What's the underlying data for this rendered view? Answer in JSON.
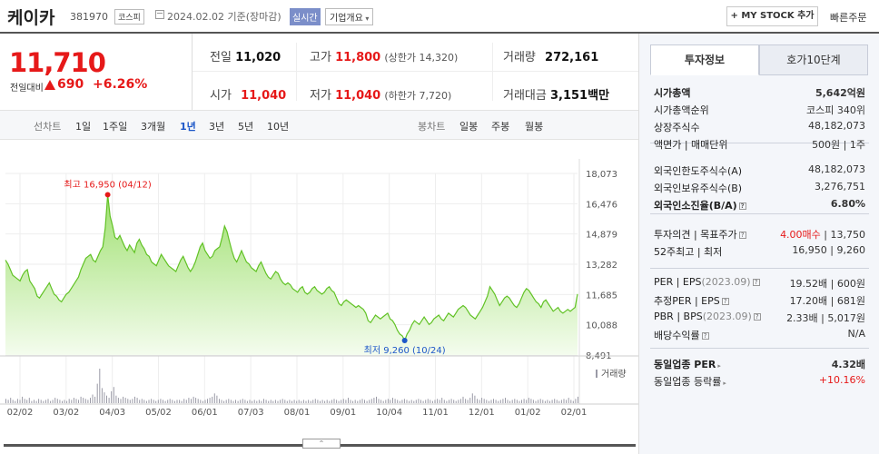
{
  "header": {
    "name": "케이카",
    "code": "381970",
    "market": "코스피",
    "date": "2024.02.02 기준(장마감)",
    "realtime": "실시간",
    "company": "기업개요",
    "mystock": "+ MY STOCK 추가",
    "quick": "빠른주문"
  },
  "price": {
    "current": "11,710",
    "diff_label": "전일대비",
    "change": "690",
    "pct": "+6.26%"
  },
  "summary": {
    "prev_label": "전일",
    "prev": "11,020",
    "high_label": "고가",
    "high": "11,800",
    "high_limit": "(상한가 14,320)",
    "volume_label": "거래량",
    "volume": "272,161",
    "open_label": "시가",
    "open": "11,040",
    "low_label": "저가",
    "low": "11,040",
    "low_limit": "(하한가 7,720)",
    "amount_label": "거래대금",
    "amount": "3,151",
    "amount_unit": "백만"
  },
  "tabs": {
    "line_label": "선차트",
    "periods": [
      "1일",
      "1주일",
      "3개월",
      "1년",
      "3년",
      "5년",
      "10년"
    ],
    "active_period": "1년",
    "candle_label": "봉차트",
    "candles": [
      "일봉",
      "주봉",
      "월봉"
    ]
  },
  "chart_data": {
    "type": "area",
    "x_ticks": [
      "02/02",
      "03/02",
      "04/03",
      "05/02",
      "06/01",
      "07/03",
      "08/01",
      "09/01",
      "10/04",
      "11/01",
      "12/01",
      "01/02",
      "02/01"
    ],
    "y_ticks": [
      "18,073",
      "16,476",
      "14,879",
      "13,282",
      "11,685",
      "10,088",
      "8,491"
    ],
    "ylim": [
      8491,
      18073
    ],
    "series": [
      {
        "values": [
          13500,
          13300,
          13000,
          12700,
          12600,
          12500,
          12400,
          12700,
          12900,
          13000,
          12400,
          12200,
          12000,
          11600,
          11500,
          11700,
          11900,
          12100,
          12300,
          12000,
          11700,
          11600,
          11400,
          11300,
          11500,
          11700,
          11800,
          12000,
          12200,
          12400,
          12600,
          13000,
          13300,
          13600,
          13700,
          13800,
          13500,
          13400,
          13700,
          14000,
          14200,
          15200,
          16950,
          15800,
          15300,
          14700,
          14600,
          14800,
          14500,
          14200,
          14000,
          14300,
          14100,
          13900,
          14400,
          14600,
          14300,
          14100,
          13800,
          13700,
          13400,
          13300,
          13200,
          13500,
          13800,
          13600,
          13400,
          13200,
          13100,
          13000,
          12900,
          13200,
          13500,
          13700,
          13400,
          13100,
          12900,
          13100,
          13400,
          13800,
          14200,
          14400,
          14000,
          13800,
          13600,
          13700,
          14000,
          14100,
          14200,
          14700,
          15300,
          15000,
          14500,
          14000,
          13600,
          13400,
          13700,
          14000,
          13700,
          13400,
          13300,
          13100,
          13000,
          12900,
          13200,
          13400,
          13100,
          12800,
          12600,
          12500,
          12700,
          12900,
          12800,
          12500,
          12300,
          12200,
          12300,
          12200,
          12000,
          11900,
          11800,
          12000,
          12100,
          11800,
          11700,
          11800,
          12000,
          12100,
          11900,
          11800,
          11700,
          11800,
          12000,
          12100,
          11900,
          11800,
          11500,
          11200,
          11100,
          11300,
          11400,
          11300,
          11200,
          11100,
          11000,
          11100,
          11000,
          10900,
          10700,
          10300,
          10200,
          10400,
          10600,
          10500,
          10400,
          10500,
          10600,
          10700,
          10400,
          10300,
          10100,
          9800,
          9600,
          9500,
          9260,
          9600,
          9800,
          10100,
          10300,
          10200,
          10100,
          10300,
          10500,
          10300,
          10100,
          10200,
          10400,
          10500,
          10600,
          10400,
          10300,
          10500,
          10700,
          10600,
          10500,
          10700,
          10900,
          11000,
          11100,
          11000,
          10800,
          10600,
          10500,
          10400,
          10600,
          10800,
          11000,
          11300,
          11600,
          12100,
          11900,
          11700,
          11400,
          11100,
          11300,
          11500,
          11600,
          11500,
          11300,
          11100,
          11000,
          11200,
          11500,
          11800,
          12000,
          11900,
          11700,
          11500,
          11300,
          11200,
          11000,
          11300,
          11400,
          11200,
          11000,
          10800,
          10900,
          11000,
          10800,
          10700,
          10800,
          10900,
          10800,
          10900,
          11000,
          11710
        ]
      }
    ],
    "volume_label": "거래량",
    "volume": [
      4,
      3,
      5,
      3,
      2,
      4,
      3,
      6,
      4,
      3,
      5,
      2,
      3,
      2,
      4,
      3,
      2,
      3,
      4,
      2,
      3,
      5,
      4,
      3,
      2,
      3,
      2,
      4,
      3,
      5,
      4,
      3,
      6,
      5,
      4,
      3,
      5,
      8,
      6,
      18,
      32,
      14,
      10,
      7,
      5,
      11,
      15,
      7,
      5,
      4,
      6,
      5,
      4,
      3,
      4,
      6,
      5,
      3,
      4,
      3,
      2,
      3,
      4,
      3,
      2,
      3,
      4,
      3,
      2,
      3,
      4,
      3,
      2,
      3,
      3,
      2,
      4,
      3,
      5,
      4,
      6,
      5,
      4,
      3,
      2,
      3,
      4,
      5,
      6,
      9,
      7,
      4,
      3,
      2,
      3,
      4,
      3,
      2,
      3,
      2,
      3,
      4,
      3,
      2,
      3,
      2,
      3,
      2,
      3,
      2,
      4,
      3,
      2,
      3,
      2,
      3,
      2,
      3,
      4,
      3,
      2,
      3,
      2,
      3,
      2,
      3,
      2,
      3,
      2,
      3,
      2,
      3,
      4,
      3,
      2,
      3,
      2,
      3,
      2,
      3,
      4,
      3,
      2,
      3,
      4,
      3,
      5,
      3,
      2,
      3,
      2,
      3,
      4,
      3,
      2,
      3,
      4,
      5,
      6,
      4,
      3,
      2,
      3,
      4,
      3,
      5,
      4,
      3,
      2,
      3,
      4,
      3,
      2,
      3,
      2,
      3,
      4,
      3,
      2,
      3,
      4,
      3,
      2,
      3,
      4,
      3,
      5,
      3,
      2,
      3,
      4,
      3,
      2,
      3,
      4,
      6,
      4,
      3,
      5,
      9,
      7,
      4,
      3,
      5,
      4,
      3,
      2,
      3,
      4,
      3,
      2,
      3,
      4,
      5,
      3,
      2,
      3,
      4,
      3,
      2,
      3,
      4,
      3,
      5,
      4,
      3,
      2,
      3,
      4,
      3,
      2,
      3,
      2,
      3,
      4,
      3,
      2,
      3,
      4,
      3,
      5,
      3,
      2,
      4,
      6
    ],
    "high_annotation": "최고 16,950 (04/12)",
    "low_annotation": "최저 9,260 (10/24)"
  },
  "side": {
    "tab_info": "투자정보",
    "tab_orderbook": "호가10단계",
    "rows1": [
      {
        "a": "시가총액",
        "b": "5,642억원",
        "bold": true
      },
      {
        "a": "시가총액순위",
        "b": "코스피 340위"
      },
      {
        "a": "상장주식수",
        "b": "48,182,073"
      },
      {
        "a": "액면가 | 매매단위",
        "b": "500원 | 1주"
      }
    ],
    "rows2": [
      {
        "a": "외국인한도주식수(A)",
        "b": "48,182,073"
      },
      {
        "a": "외국인보유주식수(B)",
        "b": "3,276,751"
      },
      {
        "a": "외국인소진율(B/A)",
        "b": "6.80%",
        "bold": true
      }
    ],
    "rows3": [
      {
        "a": "투자의견 | 목표주가",
        "b_red": "4.00매수",
        "b": " | 13,750"
      },
      {
        "a": "52주최고 | 최저",
        "b": "16,950 | 9,260"
      }
    ],
    "rows4": [
      {
        "a": "PER | EPS",
        "a_grey": "(2023.09)",
        "b": "19.52배 | 600원"
      },
      {
        "a": "추정PER | EPS",
        "b": "17.20배 | 681원"
      },
      {
        "a": "PBR | BPS",
        "a_grey": "(2023.09)",
        "b": "2.33배 | 5,017원"
      },
      {
        "a": "배당수익률",
        "b": "N/A"
      }
    ],
    "rows5": [
      {
        "a": "동일업종 PER",
        "b": "4.32배",
        "bold": true
      },
      {
        "a": "동일업종 등락률",
        "b": "+10.16%",
        "red": true
      }
    ]
  }
}
